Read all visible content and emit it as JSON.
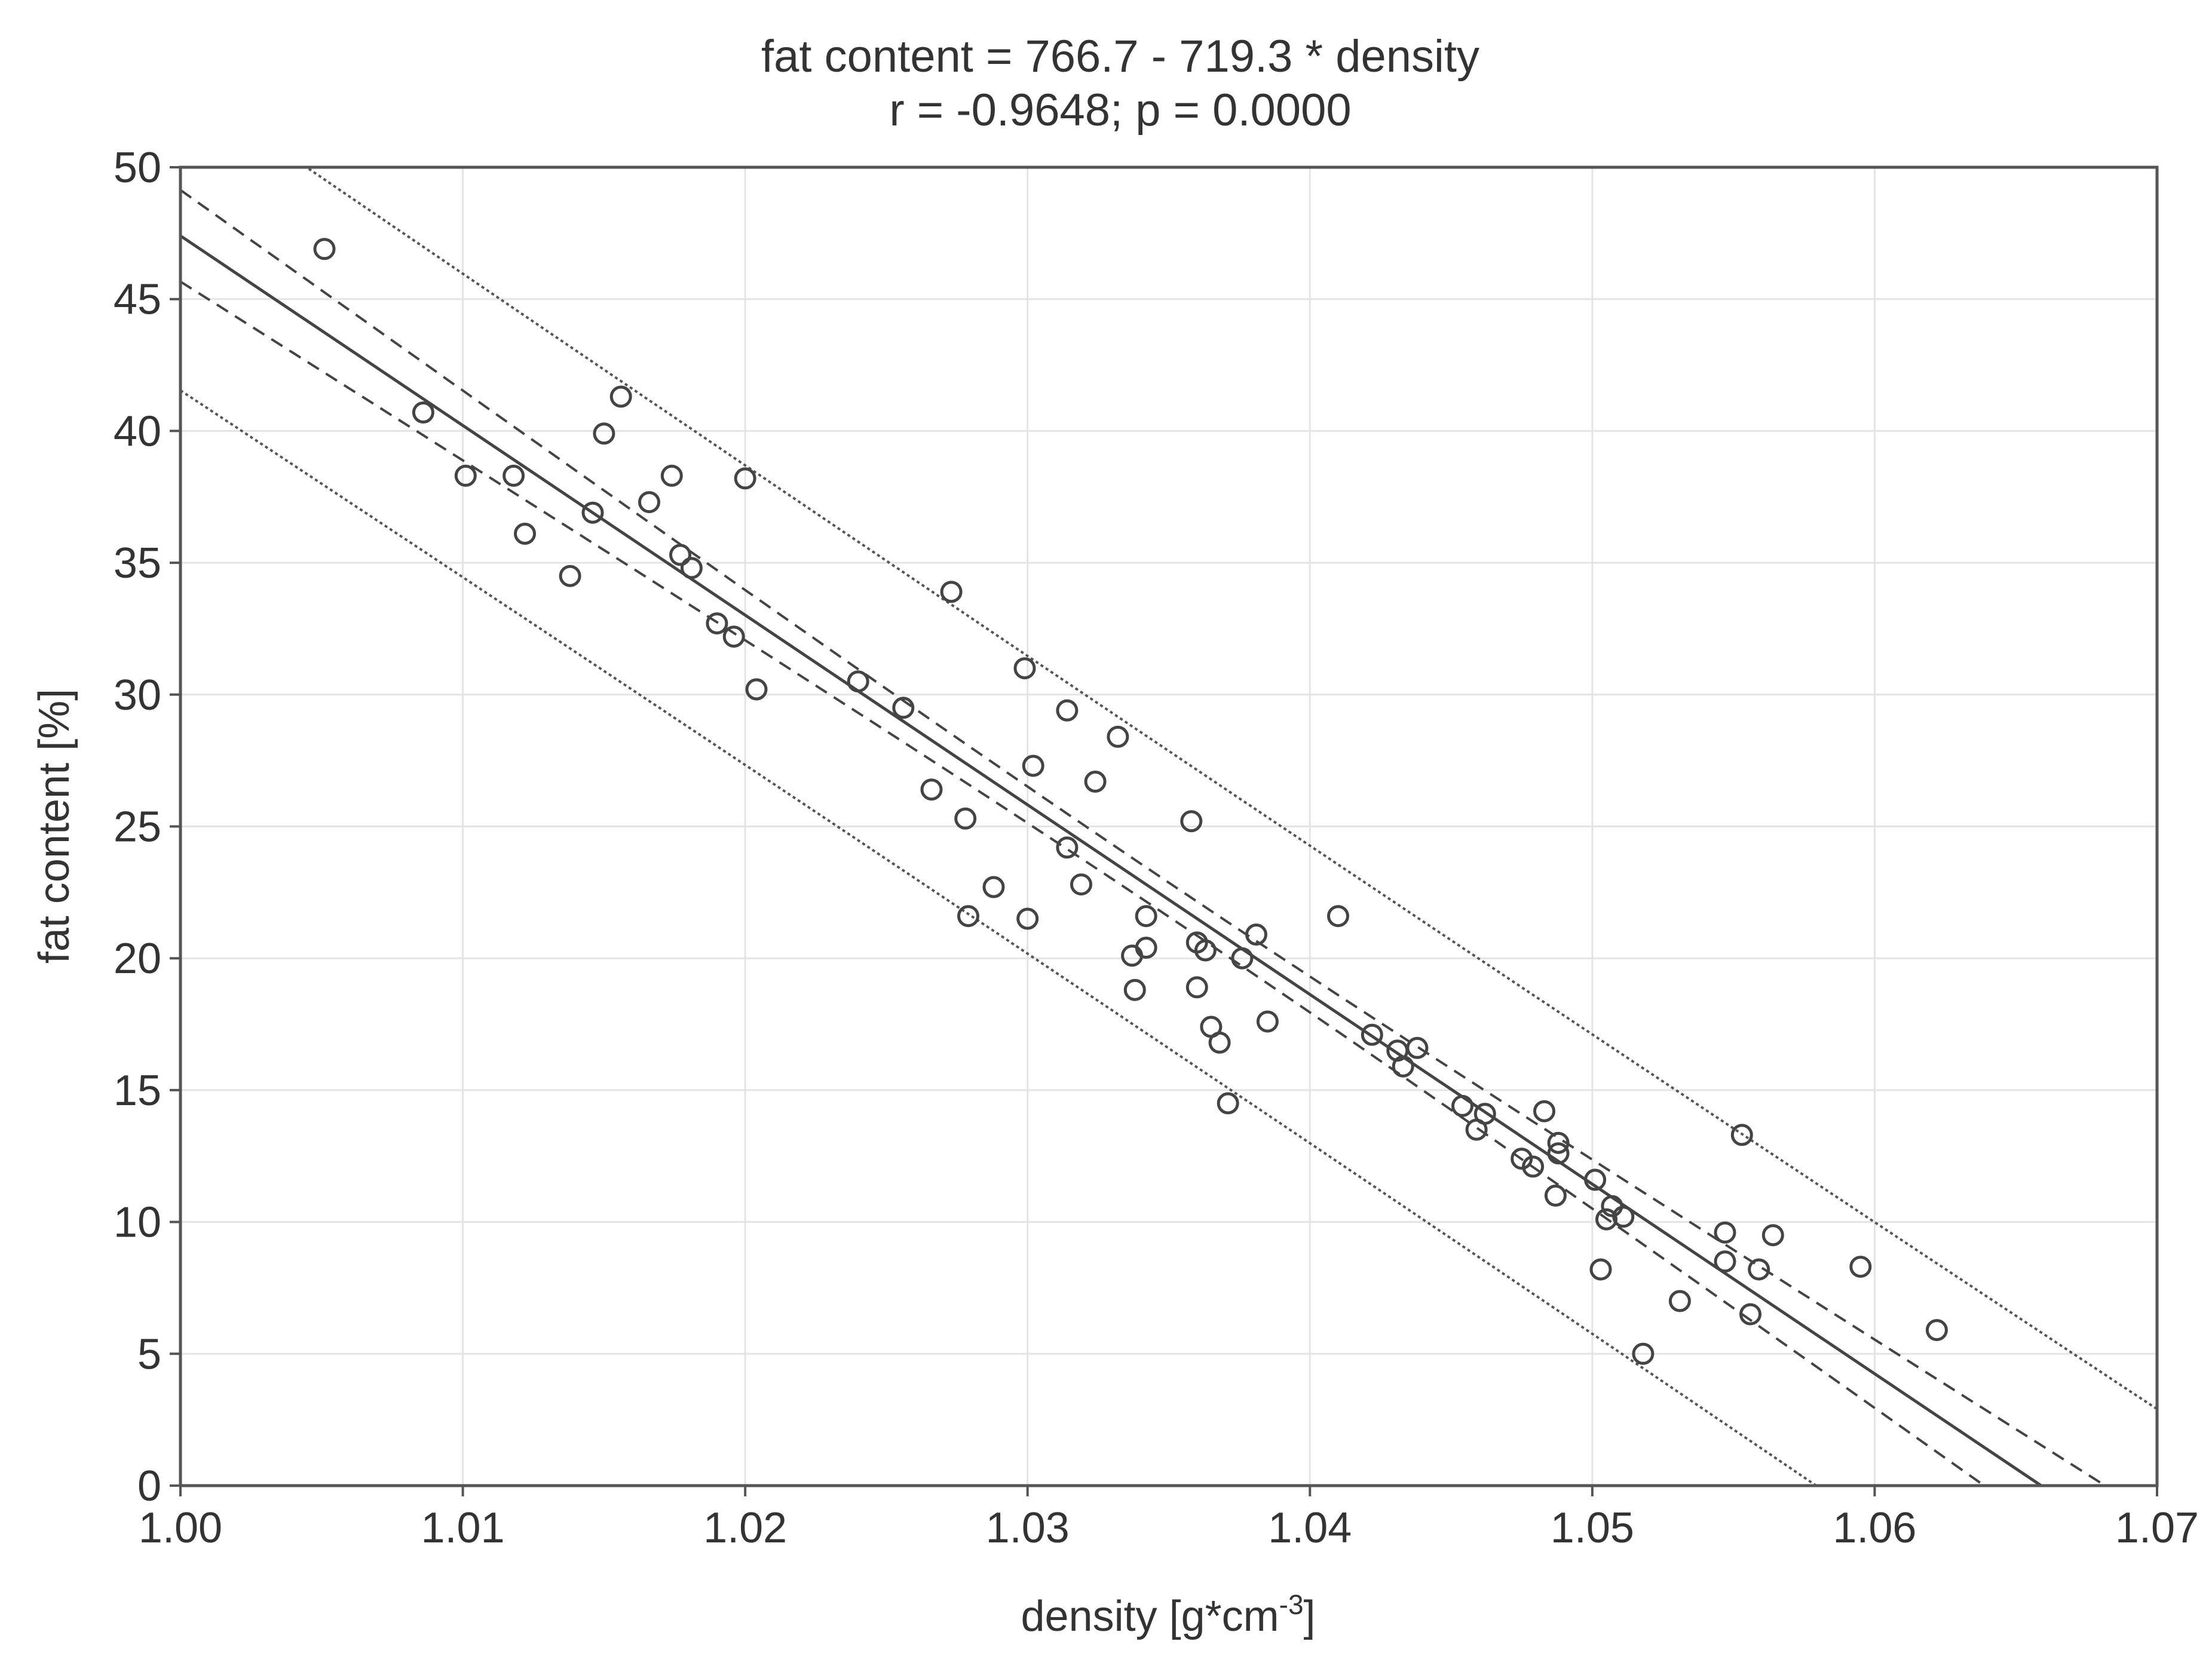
{
  "chart_data": {
    "type": "scatter",
    "title": "fat content = 766.7 - 719.3 * density",
    "subtitle": "r = -0.9648; p = 0.0000",
    "xlabel": "density [g*cm",
    "xlabel_sup": "-3",
    "xlabel_end": "]",
    "ylabel": "fat content [%]",
    "xlim": [
      1.0,
      1.07
    ],
    "ylim": [
      0,
      50
    ],
    "x_ticks": [
      "1.00",
      "1.01",
      "1.02",
      "1.03",
      "1.04",
      "1.05",
      "1.06",
      "1.07"
    ],
    "y_ticks": [
      "0",
      "5",
      "10",
      "15",
      "20",
      "25",
      "30",
      "35",
      "40",
      "45",
      "50"
    ],
    "grid": true,
    "fit": {
      "intercept": 766.7,
      "slope": -719.3
    },
    "confidence_band": "dashed",
    "prediction_band": "dotted",
    "points": [
      [
        1.0051,
        46.9
      ],
      [
        1.0086,
        40.7
      ],
      [
        1.0101,
        38.3
      ],
      [
        1.0118,
        38.3
      ],
      [
        1.0122,
        36.1
      ],
      [
        1.0138,
        34.5
      ],
      [
        1.0146,
        36.9
      ],
      [
        1.015,
        39.9
      ],
      [
        1.0156,
        41.3
      ],
      [
        1.0166,
        37.3
      ],
      [
        1.0174,
        38.3
      ],
      [
        1.0177,
        35.3
      ],
      [
        1.0181,
        34.8
      ],
      [
        1.019,
        32.7
      ],
      [
        1.0196,
        32.2
      ],
      [
        1.02,
        38.2
      ],
      [
        1.0204,
        30.2
      ],
      [
        1.024,
        30.5
      ],
      [
        1.0256,
        29.5
      ],
      [
        1.0266,
        26.4
      ],
      [
        1.0273,
        33.9
      ],
      [
        1.0278,
        25.3
      ],
      [
        1.0279,
        21.6
      ],
      [
        1.0288,
        22.7
      ],
      [
        1.0299,
        31.0
      ],
      [
        1.03,
        21.5
      ],
      [
        1.0302,
        27.3
      ],
      [
        1.0314,
        29.4
      ],
      [
        1.0314,
        24.2
      ],
      [
        1.0319,
        22.8
      ],
      [
        1.0324,
        26.7
      ],
      [
        1.0332,
        28.4
      ],
      [
        1.0337,
        20.1
      ],
      [
        1.0338,
        18.8
      ],
      [
        1.0342,
        21.6
      ],
      [
        1.0342,
        20.4
      ],
      [
        1.0358,
        25.2
      ],
      [
        1.036,
        20.6
      ],
      [
        1.036,
        18.9
      ],
      [
        1.0363,
        20.3
      ],
      [
        1.0365,
        17.4
      ],
      [
        1.0368,
        16.8
      ],
      [
        1.0371,
        14.5
      ],
      [
        1.0376,
        20.0
      ],
      [
        1.0381,
        20.9
      ],
      [
        1.0385,
        17.6
      ],
      [
        1.041,
        21.6
      ],
      [
        1.0422,
        17.1
      ],
      [
        1.0431,
        16.5
      ],
      [
        1.0433,
        15.9
      ],
      [
        1.0438,
        16.6
      ],
      [
        1.0454,
        14.4
      ],
      [
        1.0459,
        13.5
      ],
      [
        1.0462,
        14.1
      ],
      [
        1.0475,
        12.4
      ],
      [
        1.0479,
        12.1
      ],
      [
        1.0483,
        14.2
      ],
      [
        1.0487,
        11.0
      ],
      [
        1.0488,
        13.0
      ],
      [
        1.0488,
        12.6
      ],
      [
        1.0501,
        11.6
      ],
      [
        1.0503,
        8.2
      ],
      [
        1.0505,
        10.1
      ],
      [
        1.0507,
        10.6
      ],
      [
        1.0511,
        10.2
      ],
      [
        1.0518,
        5.0
      ],
      [
        1.0531,
        7.0
      ],
      [
        1.0547,
        9.6
      ],
      [
        1.0547,
        8.5
      ],
      [
        1.0553,
        13.3
      ],
      [
        1.0556,
        6.5
      ],
      [
        1.0559,
        8.2
      ],
      [
        1.0564,
        9.5
      ],
      [
        1.0595,
        8.3
      ],
      [
        1.0622,
        5.9
      ]
    ]
  }
}
